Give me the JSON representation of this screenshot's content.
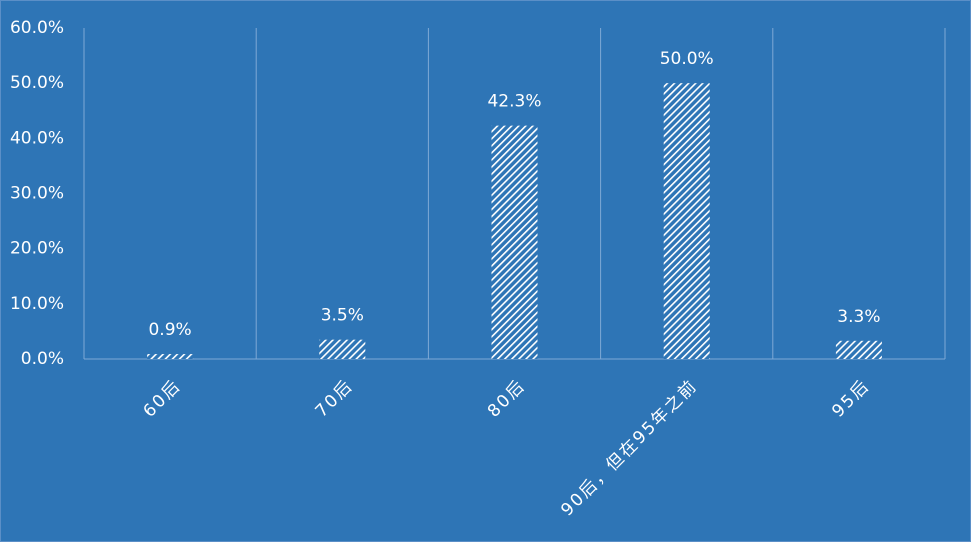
{
  "chart_data": {
    "type": "bar",
    "categories": [
      "60后",
      "70后",
      "80后",
      "90后，但在95年之前",
      "95后"
    ],
    "values": [
      0.9,
      3.5,
      42.3,
      50.0,
      3.3
    ],
    "value_labels": [
      "0.9%",
      "3.5%",
      "42.3%",
      "50.0%",
      "3.3%"
    ],
    "color": "#ffffff",
    "ylim": [
      0,
      60
    ],
    "yticks": [
      {
        "value": 0,
        "label": "0.0%"
      },
      {
        "value": 10,
        "label": "10.0%"
      },
      {
        "value": 20,
        "label": "20.0%"
      },
      {
        "value": 30,
        "label": "30.0%"
      },
      {
        "value": 40,
        "label": "40.0%"
      },
      {
        "value": 50,
        "label": "50.0%"
      },
      {
        "value": 60,
        "label": "60.0%"
      }
    ]
  }
}
